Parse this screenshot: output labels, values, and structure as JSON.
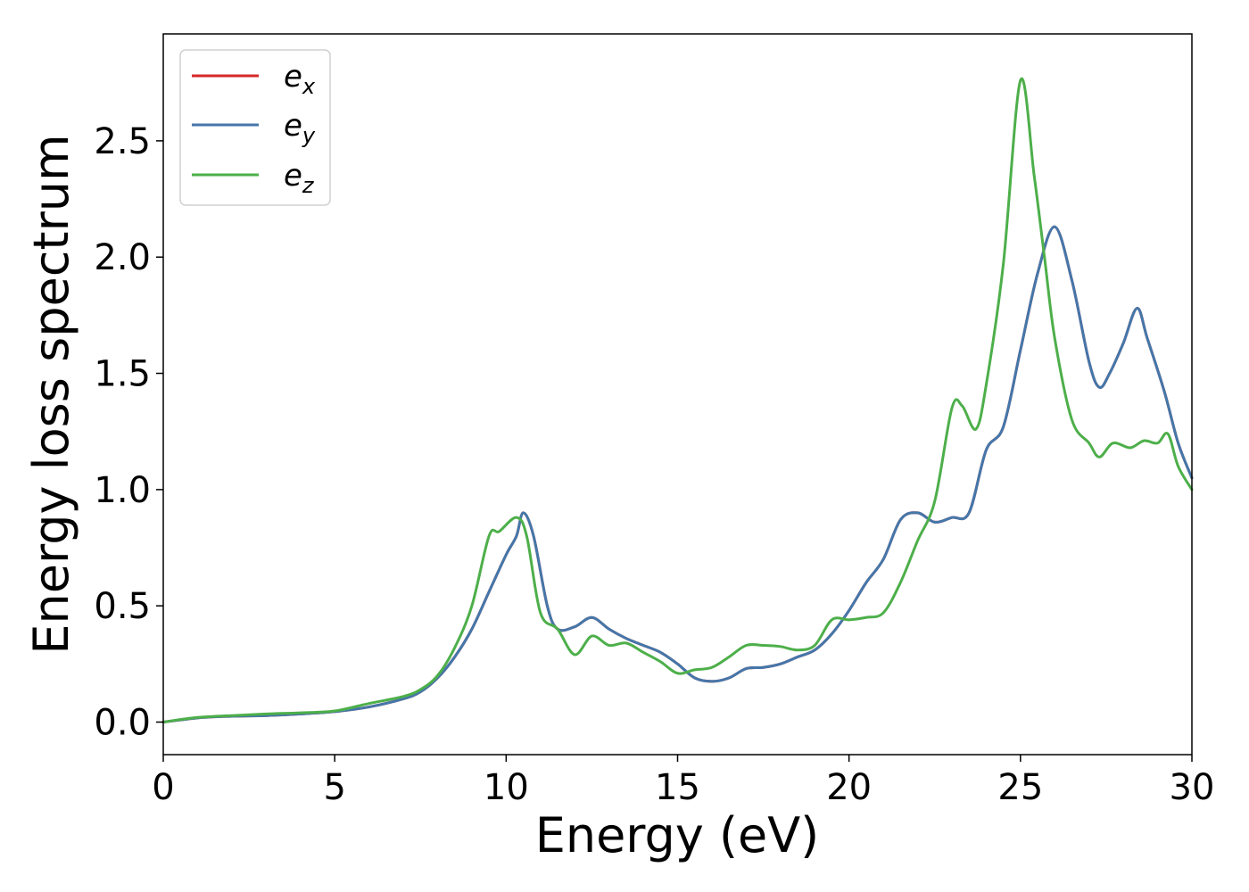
{
  "chart_data": {
    "type": "line",
    "title": "",
    "xlabel": "Energy (eV)",
    "ylabel": "Energy loss spectrum",
    "xlim": [
      0,
      30
    ],
    "ylim": [
      -0.14,
      2.96
    ],
    "xticks": [
      0,
      5,
      10,
      15,
      20,
      25,
      30
    ],
    "xtick_labels": [
      "0",
      "5",
      "10",
      "15",
      "20",
      "25",
      "30"
    ],
    "yticks": [
      0.0,
      0.5,
      1.0,
      1.5,
      2.0,
      2.5
    ],
    "ytick_labels": [
      "0.0",
      "0.5",
      "1.0",
      "1.5",
      "2.0",
      "2.5"
    ],
    "grid": false,
    "legend_position": "top-left",
    "series": [
      {
        "name": "e",
        "subscript": "x",
        "color": "#d62728",
        "points": [
          [
            0,
            0
          ],
          [
            1,
            0.018
          ],
          [
            2,
            0.025
          ],
          [
            3,
            0.028
          ],
          [
            4,
            0.035
          ],
          [
            5,
            0.045
          ],
          [
            6,
            0.065
          ],
          [
            7,
            0.1
          ],
          [
            7.5,
            0.13
          ],
          [
            8,
            0.19
          ],
          [
            8.5,
            0.28
          ],
          [
            9,
            0.4
          ],
          [
            9.5,
            0.56
          ],
          [
            10,
            0.72
          ],
          [
            10.3,
            0.8
          ],
          [
            10.5,
            0.9
          ],
          [
            10.8,
            0.8
          ],
          [
            11.2,
            0.5
          ],
          [
            11.5,
            0.4
          ],
          [
            12,
            0.41
          ],
          [
            12.5,
            0.45
          ],
          [
            13,
            0.4
          ],
          [
            13.5,
            0.36
          ],
          [
            14,
            0.33
          ],
          [
            14.5,
            0.3
          ],
          [
            15,
            0.25
          ],
          [
            15.5,
            0.19
          ],
          [
            16,
            0.175
          ],
          [
            16.5,
            0.19
          ],
          [
            17,
            0.23
          ],
          [
            17.5,
            0.235
          ],
          [
            18,
            0.25
          ],
          [
            18.5,
            0.28
          ],
          [
            19,
            0.31
          ],
          [
            19.5,
            0.38
          ],
          [
            20,
            0.48
          ],
          [
            20.5,
            0.6
          ],
          [
            21,
            0.7
          ],
          [
            21.5,
            0.87
          ],
          [
            22,
            0.9
          ],
          [
            22.5,
            0.86
          ],
          [
            23,
            0.88
          ],
          [
            23.5,
            0.9
          ],
          [
            24,
            1.17
          ],
          [
            24.5,
            1.27
          ],
          [
            25,
            1.6
          ],
          [
            25.5,
            1.93
          ],
          [
            26,
            2.13
          ],
          [
            26.5,
            1.9
          ],
          [
            27,
            1.55
          ],
          [
            27.3,
            1.44
          ],
          [
            27.6,
            1.5
          ],
          [
            28,
            1.63
          ],
          [
            28.4,
            1.78
          ],
          [
            28.7,
            1.65
          ],
          [
            29.2,
            1.42
          ],
          [
            29.6,
            1.2
          ],
          [
            30,
            1.05
          ]
        ]
      },
      {
        "name": "e",
        "subscript": "y",
        "color": "#4477aa",
        "points": [
          [
            0,
            0
          ],
          [
            1,
            0.018
          ],
          [
            2,
            0.025
          ],
          [
            3,
            0.028
          ],
          [
            4,
            0.035
          ],
          [
            5,
            0.045
          ],
          [
            6,
            0.065
          ],
          [
            7,
            0.1
          ],
          [
            7.5,
            0.13
          ],
          [
            8,
            0.19
          ],
          [
            8.5,
            0.28
          ],
          [
            9,
            0.4
          ],
          [
            9.5,
            0.56
          ],
          [
            10,
            0.72
          ],
          [
            10.3,
            0.8
          ],
          [
            10.5,
            0.9
          ],
          [
            10.8,
            0.8
          ],
          [
            11.2,
            0.5
          ],
          [
            11.5,
            0.4
          ],
          [
            12,
            0.41
          ],
          [
            12.5,
            0.45
          ],
          [
            13,
            0.4
          ],
          [
            13.5,
            0.36
          ],
          [
            14,
            0.33
          ],
          [
            14.5,
            0.3
          ],
          [
            15,
            0.25
          ],
          [
            15.5,
            0.19
          ],
          [
            16,
            0.175
          ],
          [
            16.5,
            0.19
          ],
          [
            17,
            0.23
          ],
          [
            17.5,
            0.235
          ],
          [
            18,
            0.25
          ],
          [
            18.5,
            0.28
          ],
          [
            19,
            0.31
          ],
          [
            19.5,
            0.38
          ],
          [
            20,
            0.48
          ],
          [
            20.5,
            0.6
          ],
          [
            21,
            0.7
          ],
          [
            21.5,
            0.87
          ],
          [
            22,
            0.9
          ],
          [
            22.5,
            0.86
          ],
          [
            23,
            0.88
          ],
          [
            23.5,
            0.9
          ],
          [
            24,
            1.17
          ],
          [
            24.5,
            1.27
          ],
          [
            25,
            1.6
          ],
          [
            25.5,
            1.93
          ],
          [
            26,
            2.13
          ],
          [
            26.5,
            1.9
          ],
          [
            27,
            1.55
          ],
          [
            27.3,
            1.44
          ],
          [
            27.6,
            1.5
          ],
          [
            28,
            1.63
          ],
          [
            28.4,
            1.78
          ],
          [
            28.7,
            1.65
          ],
          [
            29.2,
            1.42
          ],
          [
            29.6,
            1.2
          ],
          [
            30,
            1.05
          ]
        ]
      },
      {
        "name": "e",
        "subscript": "z",
        "color": "#4daf4a",
        "points": [
          [
            0,
            0
          ],
          [
            1,
            0.02
          ],
          [
            2,
            0.028
          ],
          [
            3,
            0.035
          ],
          [
            4,
            0.04
          ],
          [
            5,
            0.048
          ],
          [
            6,
            0.08
          ],
          [
            7,
            0.11
          ],
          [
            7.5,
            0.14
          ],
          [
            8,
            0.2
          ],
          [
            8.5,
            0.32
          ],
          [
            9,
            0.5
          ],
          [
            9.5,
            0.8
          ],
          [
            9.8,
            0.82
          ],
          [
            10.3,
            0.88
          ],
          [
            10.6,
            0.8
          ],
          [
            11,
            0.47
          ],
          [
            11.5,
            0.4
          ],
          [
            12,
            0.29
          ],
          [
            12.5,
            0.37
          ],
          [
            13,
            0.33
          ],
          [
            13.5,
            0.34
          ],
          [
            14,
            0.3
          ],
          [
            14.5,
            0.26
          ],
          [
            15,
            0.21
          ],
          [
            15.5,
            0.225
          ],
          [
            16,
            0.235
          ],
          [
            16.5,
            0.28
          ],
          [
            17,
            0.33
          ],
          [
            17.5,
            0.33
          ],
          [
            18,
            0.325
          ],
          [
            18.5,
            0.31
          ],
          [
            19,
            0.33
          ],
          [
            19.5,
            0.44
          ],
          [
            20,
            0.44
          ],
          [
            20.5,
            0.45
          ],
          [
            21,
            0.47
          ],
          [
            21.5,
            0.6
          ],
          [
            22,
            0.78
          ],
          [
            22.5,
            0.95
          ],
          [
            23,
            1.35
          ],
          [
            23.3,
            1.36
          ],
          [
            23.7,
            1.26
          ],
          [
            24,
            1.45
          ],
          [
            24.5,
            1.97
          ],
          [
            25,
            2.76
          ],
          [
            25.4,
            2.35
          ],
          [
            25.7,
            2.0
          ],
          [
            26,
            1.65
          ],
          [
            26.5,
            1.3
          ],
          [
            27,
            1.2
          ],
          [
            27.3,
            1.14
          ],
          [
            27.7,
            1.2
          ],
          [
            28.2,
            1.18
          ],
          [
            28.6,
            1.21
          ],
          [
            29,
            1.2
          ],
          [
            29.3,
            1.24
          ],
          [
            29.6,
            1.1
          ],
          [
            30,
            1.0
          ]
        ]
      }
    ]
  }
}
